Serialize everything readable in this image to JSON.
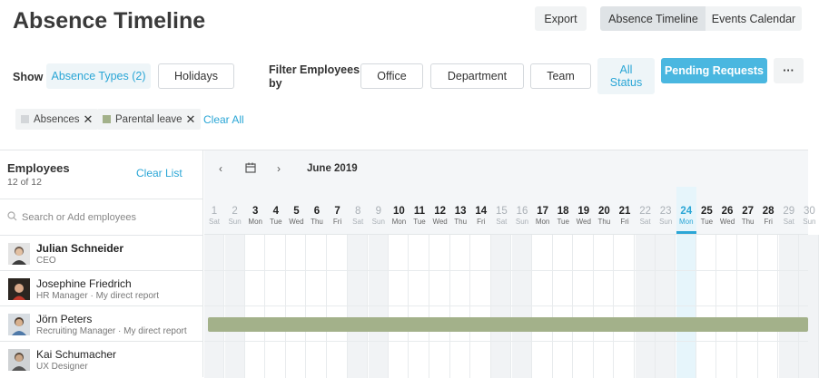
{
  "page": {
    "title": "Absence Timeline"
  },
  "header": {
    "export_label": "Export",
    "view_tabs": [
      "Absence Timeline",
      "Events Calendar"
    ]
  },
  "filters": {
    "show_label": "Show",
    "absence_types_label": "Absence Types (2)",
    "holidays_label": "Holidays",
    "filter_employees_line1": "Filter Employees",
    "filter_employees_line2": "by",
    "office_label": "Office",
    "department_label": "Department",
    "team_label": "Team",
    "all_status_line1": "All",
    "all_status_line2": "Status",
    "pending_requests_label": "Pending Requests",
    "more_label": "···"
  },
  "chips": [
    {
      "label": "Absences",
      "color": "#d3d6d9"
    },
    {
      "label": "Parental leave",
      "color": "#a3b18a"
    }
  ],
  "clear_all_label": "Clear All",
  "employees": {
    "title": "Employees",
    "count": "12 of 12",
    "clear_list_label": "Clear List",
    "search_placeholder": "Search or Add employees",
    "list": [
      {
        "name": "Julian Schneider",
        "role": "CEO"
      },
      {
        "name": "Josephine Friedrich",
        "role": "HR Manager · My direct report"
      },
      {
        "name": "Jörn Peters",
        "role": "Recruiting Manager · My direct report"
      },
      {
        "name": "Kai Schumacher",
        "role": "UX Designer"
      }
    ]
  },
  "calendar": {
    "month": "June 2019",
    "today": 24,
    "days": [
      {
        "n": "1",
        "w": "Sat"
      },
      {
        "n": "2",
        "w": "Sun"
      },
      {
        "n": "3",
        "w": "Mon"
      },
      {
        "n": "4",
        "w": "Tue"
      },
      {
        "n": "5",
        "w": "Wed"
      },
      {
        "n": "6",
        "w": "Thu"
      },
      {
        "n": "7",
        "w": "Fri"
      },
      {
        "n": "8",
        "w": "Sat"
      },
      {
        "n": "9",
        "w": "Sun"
      },
      {
        "n": "10",
        "w": "Mon"
      },
      {
        "n": "11",
        "w": "Tue"
      },
      {
        "n": "12",
        "w": "Wed"
      },
      {
        "n": "13",
        "w": "Thu"
      },
      {
        "n": "14",
        "w": "Fri"
      },
      {
        "n": "15",
        "w": "Sat"
      },
      {
        "n": "16",
        "w": "Sun"
      },
      {
        "n": "17",
        "w": "Mon"
      },
      {
        "n": "18",
        "w": "Tue"
      },
      {
        "n": "19",
        "w": "Wed"
      },
      {
        "n": "20",
        "w": "Thu"
      },
      {
        "n": "21",
        "w": "Fri"
      },
      {
        "n": "22",
        "w": "Sat"
      },
      {
        "n": "23",
        "w": "Sun"
      },
      {
        "n": "24",
        "w": "Mon"
      },
      {
        "n": "25",
        "w": "Tue"
      },
      {
        "n": "26",
        "w": "Wed"
      },
      {
        "n": "27",
        "w": "Thu"
      },
      {
        "n": "28",
        "w": "Fri"
      },
      {
        "n": "29",
        "w": "Sat"
      },
      {
        "n": "30",
        "w": "Sun"
      }
    ],
    "absences": [
      {
        "employee": "Jörn Peters",
        "type": "Parental leave",
        "color": "#a3b18a"
      }
    ]
  }
}
